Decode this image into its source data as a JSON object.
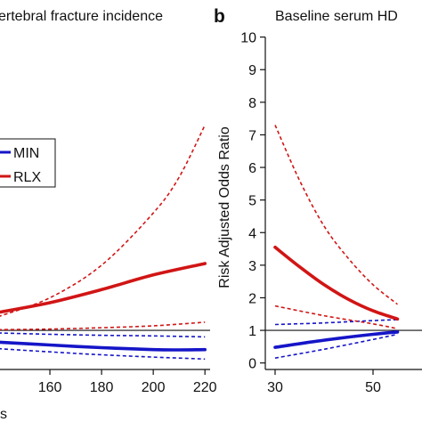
{
  "colors": {
    "min": "#1515c8",
    "rlx": "#d11515",
    "axis": "#111111"
  },
  "chart_data": [
    {
      "panel": "a",
      "type": "line",
      "title": "ertebral fracture incidence",
      "xlabel": "s",
      "ylabel": "",
      "xlim": [
        140,
        222
      ],
      "ylim": [
        -0.2,
        10.4
      ],
      "xticks": [
        160,
        180,
        200,
        220
      ],
      "reference_y": 1,
      "legend": {
        "placement": "middle-left",
        "entries": [
          "MIN",
          "RLX"
        ]
      },
      "series": [
        {
          "name": "MIN",
          "color_key": "min",
          "style": "solid",
          "x": [
            140,
            160,
            180,
            200,
            210,
            220
          ],
          "y": [
            0.64,
            0.55,
            0.47,
            0.41,
            0.4,
            0.41
          ]
        },
        {
          "name": "",
          "color_key": "min",
          "style": "dashed",
          "x": [
            140,
            160,
            180,
            200,
            220
          ],
          "y": [
            0.92,
            0.88,
            0.85,
            0.83,
            0.8
          ]
        },
        {
          "name": "",
          "color_key": "min",
          "style": "dashed",
          "x": [
            140,
            160,
            180,
            200,
            220
          ],
          "y": [
            0.44,
            0.34,
            0.25,
            0.18,
            0.12
          ]
        },
        {
          "name": "RLX",
          "color_key": "rlx",
          "style": "solid",
          "x": [
            140,
            160,
            180,
            200,
            220
          ],
          "y": [
            1.55,
            1.85,
            2.25,
            2.7,
            3.05
          ]
        },
        {
          "name": "",
          "color_key": "rlx",
          "style": "dashed",
          "x": [
            140,
            160,
            180,
            200,
            210,
            220
          ],
          "y": [
            1.42,
            2.0,
            3.0,
            4.6,
            5.7,
            7.3
          ]
        },
        {
          "name": "",
          "color_key": "rlx",
          "style": "dashed",
          "x": [
            140,
            160,
            180,
            200,
            220
          ],
          "y": [
            1.02,
            1.04,
            1.08,
            1.14,
            1.25
          ]
        }
      ]
    },
    {
      "panel": "b",
      "type": "line",
      "title": "Baseline serum HD",
      "xlabel": "",
      "ylabel": "Risk Adjusted Odds Ratio",
      "xlim": [
        28,
        60
      ],
      "ylim": [
        -0.2,
        10.4
      ],
      "xticks": [
        30,
        50
      ],
      "yticks": [
        0,
        1,
        2,
        3,
        4,
        5,
        6,
        7,
        8,
        9,
        10
      ],
      "reference_y": 1,
      "series": [
        {
          "name": "MIN",
          "color_key": "min",
          "style": "solid",
          "x": [
            30,
            40,
            50,
            55
          ],
          "y": [
            0.48,
            0.7,
            0.88,
            0.95
          ]
        },
        {
          "name": "",
          "color_key": "min",
          "style": "dashed",
          "x": [
            30,
            40,
            50,
            55
          ],
          "y": [
            1.18,
            1.23,
            1.3,
            1.33
          ]
        },
        {
          "name": "",
          "color_key": "min",
          "style": "dashed",
          "x": [
            30,
            40,
            50,
            55
          ],
          "y": [
            0.15,
            0.42,
            0.72,
            0.88
          ]
        },
        {
          "name": "RLX",
          "color_key": "rlx",
          "style": "solid",
          "x": [
            30,
            35,
            40,
            45,
            50,
            55
          ],
          "y": [
            3.55,
            2.95,
            2.4,
            1.95,
            1.6,
            1.35
          ]
        },
        {
          "name": "",
          "color_key": "rlx",
          "style": "dashed",
          "x": [
            30,
            35,
            40,
            45,
            50,
            55
          ],
          "y": [
            7.3,
            5.6,
            4.2,
            3.2,
            2.4,
            1.8
          ]
        },
        {
          "name": "",
          "color_key": "rlx",
          "style": "dashed",
          "x": [
            30,
            40,
            50,
            55
          ],
          "y": [
            1.75,
            1.45,
            1.2,
            1.05
          ]
        }
      ]
    }
  ]
}
